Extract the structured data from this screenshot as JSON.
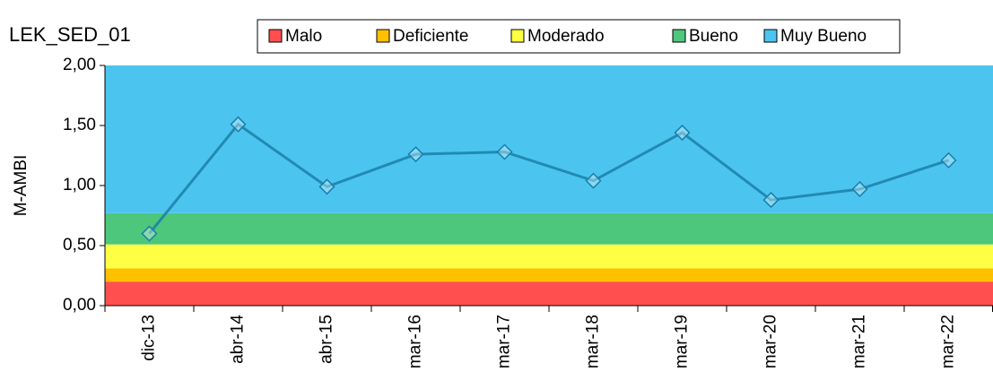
{
  "chart_data": {
    "type": "line",
    "title": "LEK_SED_01",
    "y_label": "M-AMBI",
    "categories": [
      "dic-13",
      "abr-14",
      "abr-15",
      "mar-16",
      "mar-17",
      "mar-18",
      "mar-19",
      "mar-20",
      "mar-21",
      "mar-22"
    ],
    "series": [
      {
        "color": "#1a7fa8",
        "values": [
          0.6,
          1.51,
          0.99,
          1.26,
          1.28,
          1.04,
          1.44,
          0.88,
          0.97,
          1.21
        ]
      }
    ],
    "bands": [
      {
        "name": "Malo",
        "color": "#ff4f4f",
        "from": 0,
        "to": 0.2
      },
      {
        "name": "Deficiente",
        "color": "#ffc000",
        "from": 0.2,
        "to": 0.31
      },
      {
        "name": "Moderado",
        "color": "#ffff44",
        "from": 0.31,
        "to": 0.51
      },
      {
        "name": "Bueno",
        "color": "#4cc77c",
        "from": 0.51,
        "to": 0.77
      },
      {
        "name": "Muy Bueno",
        "color": "#4bc5f0",
        "from": 0.77,
        "to": 2
      }
    ],
    "ylim": [
      0,
      2
    ],
    "yticks": [
      {
        "value": 0,
        "label": "0,00"
      },
      {
        "value": 0.5,
        "label": "0,50"
      },
      {
        "value": 1,
        "label": "1,00"
      },
      {
        "value": 1.5,
        "label": "1,50"
      },
      {
        "value": 2,
        "label": "2,00"
      }
    ]
  }
}
